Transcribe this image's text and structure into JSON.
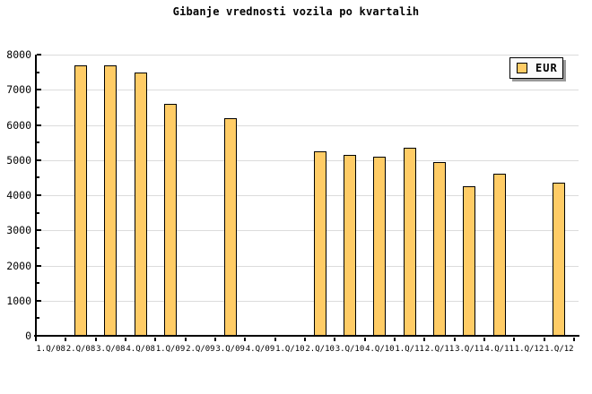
{
  "title": "Gibanje vrednosti vozila po kvartalih",
  "legend": {
    "label": "EUR"
  },
  "colors": {
    "background": "#FFFFFF",
    "bar_fill": "#FFCC66",
    "bar_border": "#000000",
    "grid": "#DCDCDC",
    "axis": "#000000",
    "text": "#000000",
    "legend_bg": "#FBFBFB",
    "legend_shadow": "#999999"
  },
  "chart_data": {
    "type": "bar",
    "title": "Gibanje vrednosti vozila po kvartalih",
    "xlabel": "",
    "ylabel": "",
    "categories": [
      "1.Q/08",
      "2.Q/08",
      "3.Q/08",
      "4.Q/08",
      "1.Q/09",
      "2.Q/09",
      "3.Q/09",
      "4.Q/09",
      "1.Q/10",
      "2.Q/10",
      "3.Q/10",
      "4.Q/10",
      "1.Q/11",
      "2.Q/11",
      "3.Q/11",
      "4.Q/11",
      "1.Q/12",
      "1.Q/12"
    ],
    "series": [
      {
        "name": "EUR",
        "values": [
          null,
          7700,
          7700,
          7500,
          6600,
          null,
          6200,
          null,
          null,
          5250,
          5150,
          5100,
          5350,
          4950,
          4250,
          4600,
          null,
          4350
        ]
      }
    ],
    "ylim": [
      0,
      8000
    ],
    "ytick_major": 1000,
    "ytick_minor": 500,
    "ytick_labels": [
      "0",
      "1000",
      "2000",
      "3000",
      "4000",
      "5000",
      "6000",
      "7000",
      "8000"
    ],
    "grid": "horizontal-major",
    "legend_position": "top-right"
  }
}
